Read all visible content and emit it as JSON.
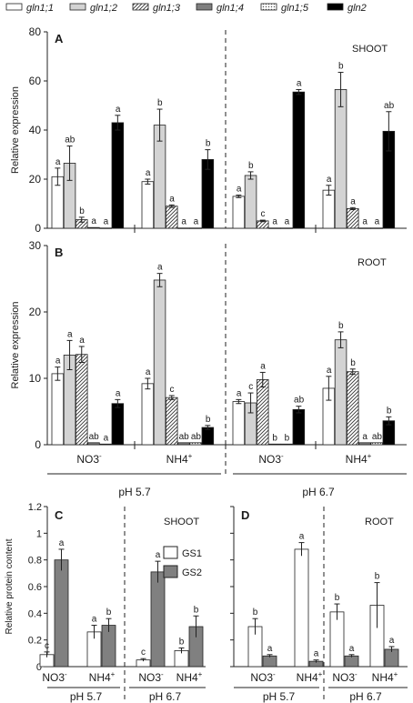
{
  "legend": [
    {
      "label": "gln1;1",
      "pattern": "white"
    },
    {
      "label": "gln1;2",
      "pattern": "lightgray"
    },
    {
      "label": "gln1;3",
      "pattern": "hatch"
    },
    {
      "label": "gln1;4",
      "pattern": "darkgray"
    },
    {
      "label": "gln1;5",
      "pattern": "dots"
    },
    {
      "label": "gln2",
      "pattern": "black"
    }
  ],
  "panel_letters": {
    "A": "A",
    "B": "B",
    "C": "C",
    "D": "D"
  },
  "tissue_labels": {
    "shoot": "SHOOT",
    "root": "ROOT"
  },
  "gs_legend": [
    "GS1",
    "GS2"
  ],
  "colors": {
    "white": "#ffffff",
    "lightgray": "#d3d3d3",
    "darkgray": "#7f7f7f",
    "black": "#000000",
    "GS1": "#ffffff",
    "GS2": "#808080"
  },
  "chart_data": [
    {
      "panel": "A",
      "type": "bar",
      "ylabel": "Relative expression",
      "ylim": [
        0,
        80
      ],
      "yticks": [
        0,
        20,
        40,
        60,
        80
      ],
      "groups": [
        "NO3-, pH 5.7",
        "NH4+, pH 5.7",
        "NO3-, pH 6.7",
        "NH4+, pH 6.7"
      ],
      "series": [
        {
          "name": "gln1;1",
          "values": [
            21,
            19,
            13,
            15.5
          ],
          "errors": [
            3.5,
            1,
            0.5,
            2
          ],
          "letters": [
            "a",
            "a",
            "a",
            "a"
          ]
        },
        {
          "name": "gln1;2",
          "values": [
            26.5,
            42,
            21.5,
            56.5
          ],
          "errors": [
            7,
            6.5,
            1.5,
            7
          ],
          "letters": [
            "ab",
            "b",
            "b",
            "b"
          ]
        },
        {
          "name": "gln1;3",
          "values": [
            3.5,
            9,
            3,
            8
          ],
          "errors": [
            1,
            0.5,
            0.3,
            0.4
          ],
          "letters": [
            "b",
            "a",
            "c",
            "a"
          ]
        },
        {
          "name": "gln1;4",
          "values": [
            0.3,
            0.1,
            0.1,
            0.1
          ],
          "errors": [
            0,
            0,
            0,
            0
          ],
          "letters": [
            "a",
            "a",
            "a",
            "a"
          ]
        },
        {
          "name": "gln1;5",
          "values": [
            0.1,
            0.1,
            0.1,
            0.1
          ],
          "errors": [
            0,
            0,
            0,
            0
          ],
          "letters": [
            "a",
            "a",
            "a",
            "a"
          ]
        },
        {
          "name": "gln2",
          "values": [
            43,
            28,
            55.5,
            39.5
          ],
          "errors": [
            3,
            4,
            1,
            8
          ],
          "letters": [
            "a",
            "b",
            "a",
            "ab"
          ]
        }
      ]
    },
    {
      "panel": "B",
      "type": "bar",
      "ylabel": "Relative expression",
      "ylim": [
        0,
        30
      ],
      "yticks": [
        0,
        10,
        20,
        30
      ],
      "groups": [
        "NO3-, pH 5.7",
        "NH4+, pH 5.7",
        "NO3-, pH 6.7",
        "NH4+, pH 6.7"
      ],
      "series": [
        {
          "name": "gln1;1",
          "values": [
            10.7,
            9.2,
            6.5,
            8.5
          ],
          "errors": [
            1,
            0.8,
            0.3,
            1.8
          ],
          "letters": [
            "a",
            "a",
            "a",
            "a"
          ]
        },
        {
          "name": "gln1;2",
          "values": [
            13.5,
            24.8,
            6.3,
            15.8
          ],
          "errors": [
            2.2,
            1,
            1.5,
            1.2
          ],
          "letters": [
            "a",
            "a",
            "c",
            "b"
          ]
        },
        {
          "name": "gln1;3",
          "values": [
            13.6,
            7.1,
            9.8,
            11
          ],
          "errors": [
            1.2,
            0.3,
            1.1,
            0.4
          ],
          "letters": [
            "a",
            "c",
            "a",
            "b"
          ]
        },
        {
          "name": "gln1;4",
          "values": [
            0.3,
            0.3,
            0.1,
            0.3
          ],
          "errors": [
            0,
            0,
            0,
            0
          ],
          "letters": [
            "ab",
            "ab",
            "b",
            "a"
          ]
        },
        {
          "name": "gln1;5",
          "values": [
            0.1,
            0.3,
            0.1,
            0.3
          ],
          "errors": [
            0,
            0,
            0,
            0
          ],
          "letters": [
            "a",
            "ab",
            "b",
            "ab"
          ]
        },
        {
          "name": "gln2",
          "values": [
            6.2,
            2.6,
            5.3,
            3.6
          ],
          "errors": [
            0.6,
            0.3,
            0.5,
            0.6
          ],
          "letters": [
            "a",
            "b",
            "ab",
            "b"
          ]
        }
      ]
    },
    {
      "panel": "C",
      "type": "bar",
      "ylabel": "Relative protein content",
      "ylim": [
        0,
        1.2
      ],
      "yticks": [
        0,
        0.2,
        0.4,
        0.6,
        0.8,
        1,
        1.2
      ],
      "groups": [
        "NO3-, pH 5.7",
        "NH4+, pH 5.7",
        "NO3-, pH 6.7",
        "NH4+, pH 6.7"
      ],
      "series": [
        {
          "name": "GS1",
          "values": [
            0.09,
            0.26,
            0.05,
            0.12
          ],
          "errors": [
            0.02,
            0.05,
            0.01,
            0.02
          ],
          "letters": [
            "c",
            "a",
            "c",
            "b"
          ]
        },
        {
          "name": "GS2",
          "values": [
            0.8,
            0.31,
            0.71,
            0.3
          ],
          "errors": [
            0.08,
            0.05,
            0.08,
            0.08
          ],
          "letters": [
            "a",
            "b",
            "a",
            "b"
          ]
        }
      ]
    },
    {
      "panel": "D",
      "type": "bar",
      "ylabel": "",
      "ylim": [
        0,
        1.2
      ],
      "yticks": [
        0,
        0.2,
        0.4,
        0.6,
        0.8,
        1,
        1.2
      ],
      "groups": [
        "NO3-, pH 5.7",
        "NH4+, pH 5.7",
        "NO3-, pH 6.7",
        "NH4+, pH 6.7"
      ],
      "series": [
        {
          "name": "GS1",
          "values": [
            0.3,
            0.88,
            0.41,
            0.46
          ],
          "errors": [
            0.06,
            0.05,
            0.06,
            0.17
          ],
          "letters": [
            "b",
            "a",
            "b",
            "b"
          ]
        },
        {
          "name": "GS2",
          "values": [
            0.08,
            0.04,
            0.08,
            0.13
          ],
          "errors": [
            0.01,
            0.01,
            0.01,
            0.02
          ],
          "letters": [
            "a",
            "a",
            "a",
            "a"
          ]
        }
      ]
    }
  ],
  "x_labels": {
    "no3": "NO3",
    "no3_sup": "-",
    "nh4": "NH4",
    "nh4_sup": "+",
    "ph57": "pH 5.7",
    "ph67": "pH 6.7"
  }
}
